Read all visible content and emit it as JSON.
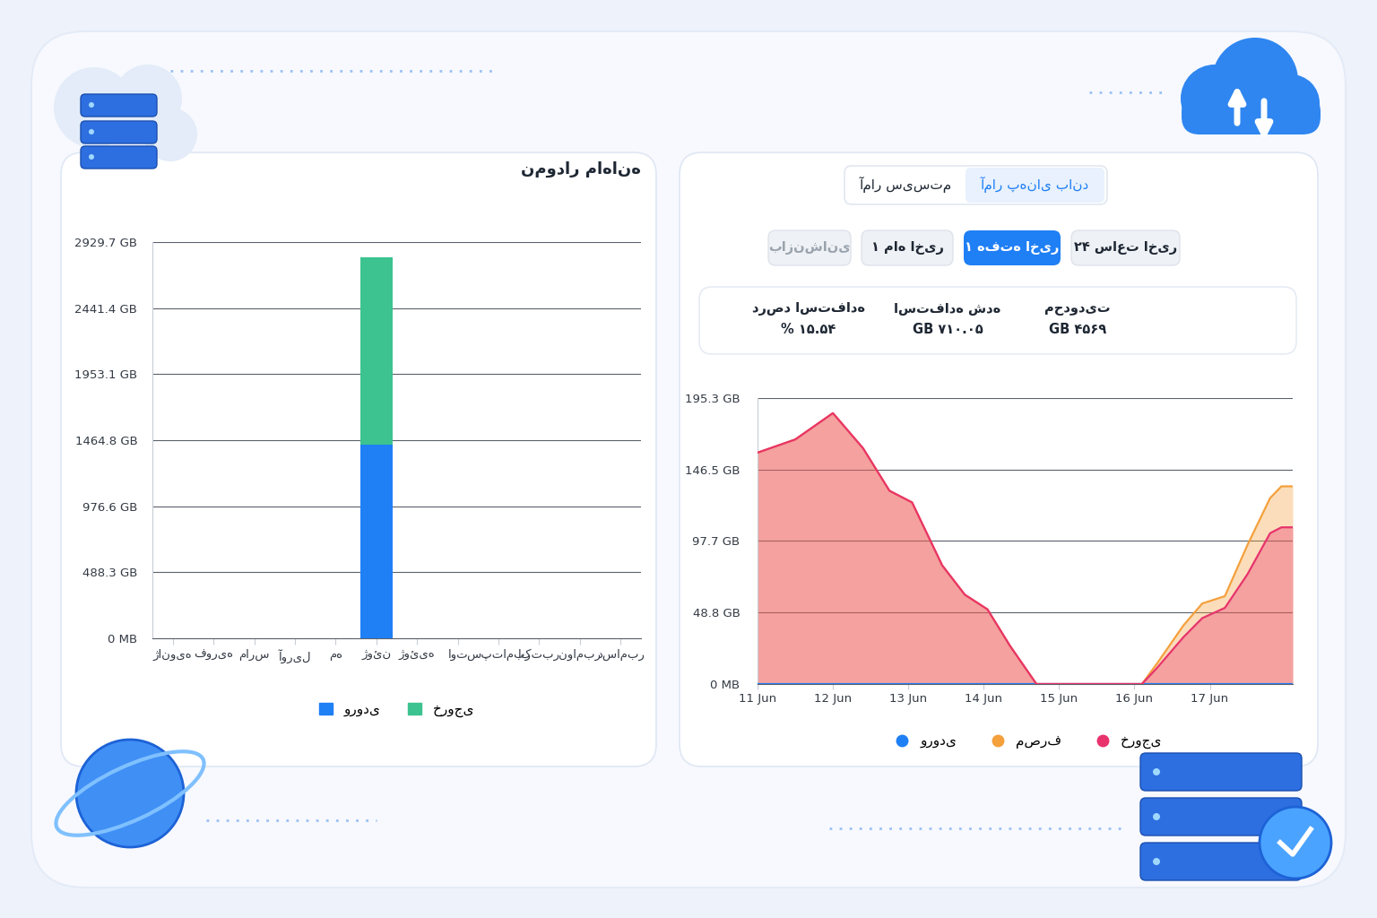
{
  "tabs": [
    {
      "label": "آمار پهنای باند",
      "active": true
    },
    {
      "label": "آمار سیستم",
      "active": false
    }
  ],
  "period_buttons": [
    {
      "label": "۲۴ ساعت اخیر",
      "active": false
    },
    {
      "label": "۱ هفته اخیر",
      "active": true
    },
    {
      "label": "۱ ماه اخیر",
      "active": false
    },
    {
      "label": "بازنشانی",
      "active": false
    }
  ],
  "stats": [
    {
      "label": "محدودیت",
      "value": "GB ۴۵۶۹"
    },
    {
      "label": "استفاده شده",
      "value": "GB ۷۱۰.۰۵"
    },
    {
      "label": "درصد استفاده",
      "value": "% ۱۵.۵۴"
    }
  ],
  "chart_data": [
    {
      "type": "bar",
      "title": "نمودار ماهانه",
      "categories": [
        "ژانویه",
        "فوریه",
        "مارس",
        "آوریل",
        "مه",
        "ژوئن",
        "ژوئیه",
        "اوت",
        "سپتامبر",
        "اکتبر",
        "نوامبر",
        "دسامبر"
      ],
      "series": [
        {
          "name": "ورودی",
          "color": "#1f7ff5",
          "values": [
            0,
            0,
            0,
            0,
            0,
            1431,
            0,
            0,
            0,
            0,
            0,
            0
          ]
        },
        {
          "name": "خروجی",
          "color": "#3cc38f",
          "values": [
            0,
            0,
            0,
            0,
            0,
            1385,
            0,
            0,
            0,
            0,
            0,
            0
          ]
        }
      ],
      "stacked": true,
      "ylim": [
        0,
        2929.7
      ],
      "yticks": [
        {
          "value": 0,
          "label": "0 MB"
        },
        {
          "value": 488.3,
          "label": "488.3 GB"
        },
        {
          "value": 976.6,
          "label": "976.6 GB"
        },
        {
          "value": 1464.8,
          "label": "1464.8 GB"
        },
        {
          "value": 1953.1,
          "label": "1953.1 GB"
        },
        {
          "value": 2441.4,
          "label": "2441.4 GB"
        },
        {
          "value": 2929.7,
          "label": "2929.7 GB"
        }
      ],
      "grid": true,
      "legend": "lower center"
    },
    {
      "type": "area",
      "x": [
        11.0,
        11.5,
        12.0,
        12.4,
        12.75,
        13.05,
        13.45,
        13.75,
        14.05,
        14.35,
        14.7,
        15.0,
        15.5,
        16.0,
        16.1,
        16.3,
        16.65,
        16.9,
        17.2,
        17.5,
        17.8,
        17.95,
        18.1
      ],
      "series": [
        {
          "name": "ورودی",
          "color": "#1f7ff5",
          "values": [
            0,
            0,
            0,
            0,
            0,
            0,
            0,
            0,
            0,
            0,
            0,
            0,
            0,
            0,
            0,
            0,
            0,
            0,
            0,
            0,
            0,
            0,
            0
          ]
        },
        {
          "name": "مصرف",
          "color": "#f4a03c",
          "values": [
            158,
            167,
            185,
            161,
            132,
            124,
            81,
            61,
            51,
            26,
            0,
            0,
            0,
            0,
            0,
            14,
            40,
            55,
            60,
            95,
            127,
            135,
            135
          ]
        },
        {
          "name": "خروجی",
          "color": "#e8336d",
          "values": [
            158,
            167,
            185,
            161,
            132,
            124,
            81,
            61,
            51,
            26,
            0,
            0,
            0,
            0,
            0,
            11,
            32,
            45,
            52,
            75,
            103,
            107,
            107
          ]
        }
      ],
      "xlim": [
        11,
        18.1
      ],
      "xticks": [
        {
          "value": 11,
          "label": "11 Jun"
        },
        {
          "value": 12,
          "label": "12 Jun"
        },
        {
          "value": 13,
          "label": "13 Jun"
        },
        {
          "value": 14,
          "label": "14 Jun"
        },
        {
          "value": 15,
          "label": "15 Jun"
        },
        {
          "value": 16,
          "label": "16 Jun"
        },
        {
          "value": 17,
          "label": "17 Jun"
        }
      ],
      "ylim": [
        0,
        195.3
      ],
      "yticks": [
        {
          "value": 0,
          "label": "0 MB"
        },
        {
          "value": 48.8,
          "label": "48.8 GB"
        },
        {
          "value": 97.7,
          "label": "97.7 GB"
        },
        {
          "value": 146.5,
          "label": "146.5 GB"
        },
        {
          "value": 195.3,
          "label": "195.3 GB"
        }
      ],
      "grid": true,
      "legend": "lower center"
    }
  ]
}
